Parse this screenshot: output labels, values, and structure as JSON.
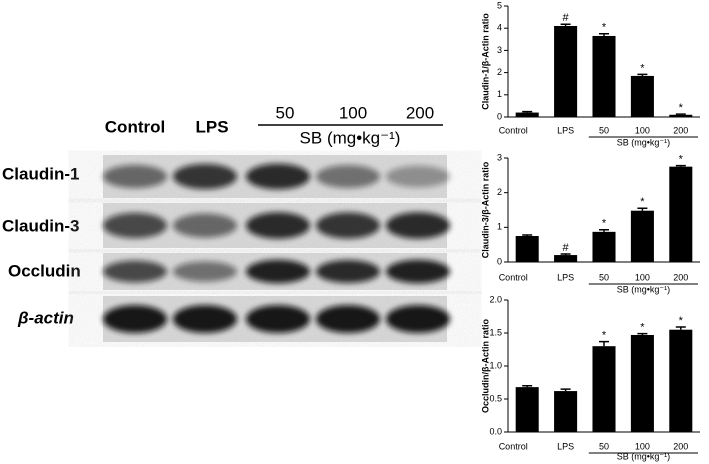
{
  "blot": {
    "lanes": [
      "Control",
      "LPS",
      "50",
      "100",
      "200"
    ],
    "group_label": "SB (mg•kg⁻¹)",
    "rows": [
      "Claudin-1",
      "Claudin-3",
      "Occludin",
      "β-actin"
    ]
  },
  "chart_data": [
    {
      "type": "bar",
      "y_label": "Claudin-1/β-Actin ratio",
      "categories": [
        "Control",
        "LPS",
        "50",
        "100",
        "200"
      ],
      "values": [
        0.2,
        4.1,
        3.65,
        1.85,
        0.1
      ],
      "errors": [
        0.04,
        0.08,
        0.1,
        0.07,
        0.03
      ],
      "annotations": [
        null,
        "#",
        "*",
        "*",
        "*"
      ],
      "group_label": "SB (mg•kg⁻¹)",
      "color": "#000000",
      "ylim": [
        0,
        5
      ],
      "yticks": [
        0,
        1,
        2,
        3,
        4,
        5
      ]
    },
    {
      "type": "bar",
      "y_label": "Claudin-3/β-Actin ratio",
      "categories": [
        "Control",
        "LPS",
        "50",
        "100",
        "200"
      ],
      "values": [
        0.75,
        0.2,
        0.87,
        1.48,
        2.75
      ],
      "errors": [
        0.03,
        0.03,
        0.06,
        0.07,
        0.03
      ],
      "annotations": [
        null,
        "#",
        "*",
        "*",
        "*"
      ],
      "group_label": "SB (mg•kg⁻¹)",
      "color": "#000000",
      "ylim": [
        0,
        3
      ],
      "yticks": [
        0,
        1,
        2,
        3
      ]
    },
    {
      "type": "bar",
      "y_label": "Occludin/β-Actin ratio",
      "categories": [
        "Control",
        "LPS",
        "50",
        "100",
        "200"
      ],
      "values": [
        0.68,
        0.62,
        1.3,
        1.47,
        1.55
      ],
      "errors": [
        0.02,
        0.03,
        0.07,
        0.02,
        0.04
      ],
      "annotations": [
        null,
        null,
        "*",
        "*",
        "*"
      ],
      "group_label": "SB (mg•kg⁻¹)",
      "color": "#000000",
      "ylim": [
        0,
        2
      ],
      "yticks": [
        {
          "value": 0,
          "label": "0.0"
        },
        0.5,
        {
          "value": 1,
          "label": "1.0"
        },
        1.5,
        {
          "value": 2,
          "label": "2.0"
        }
      ]
    }
  ]
}
